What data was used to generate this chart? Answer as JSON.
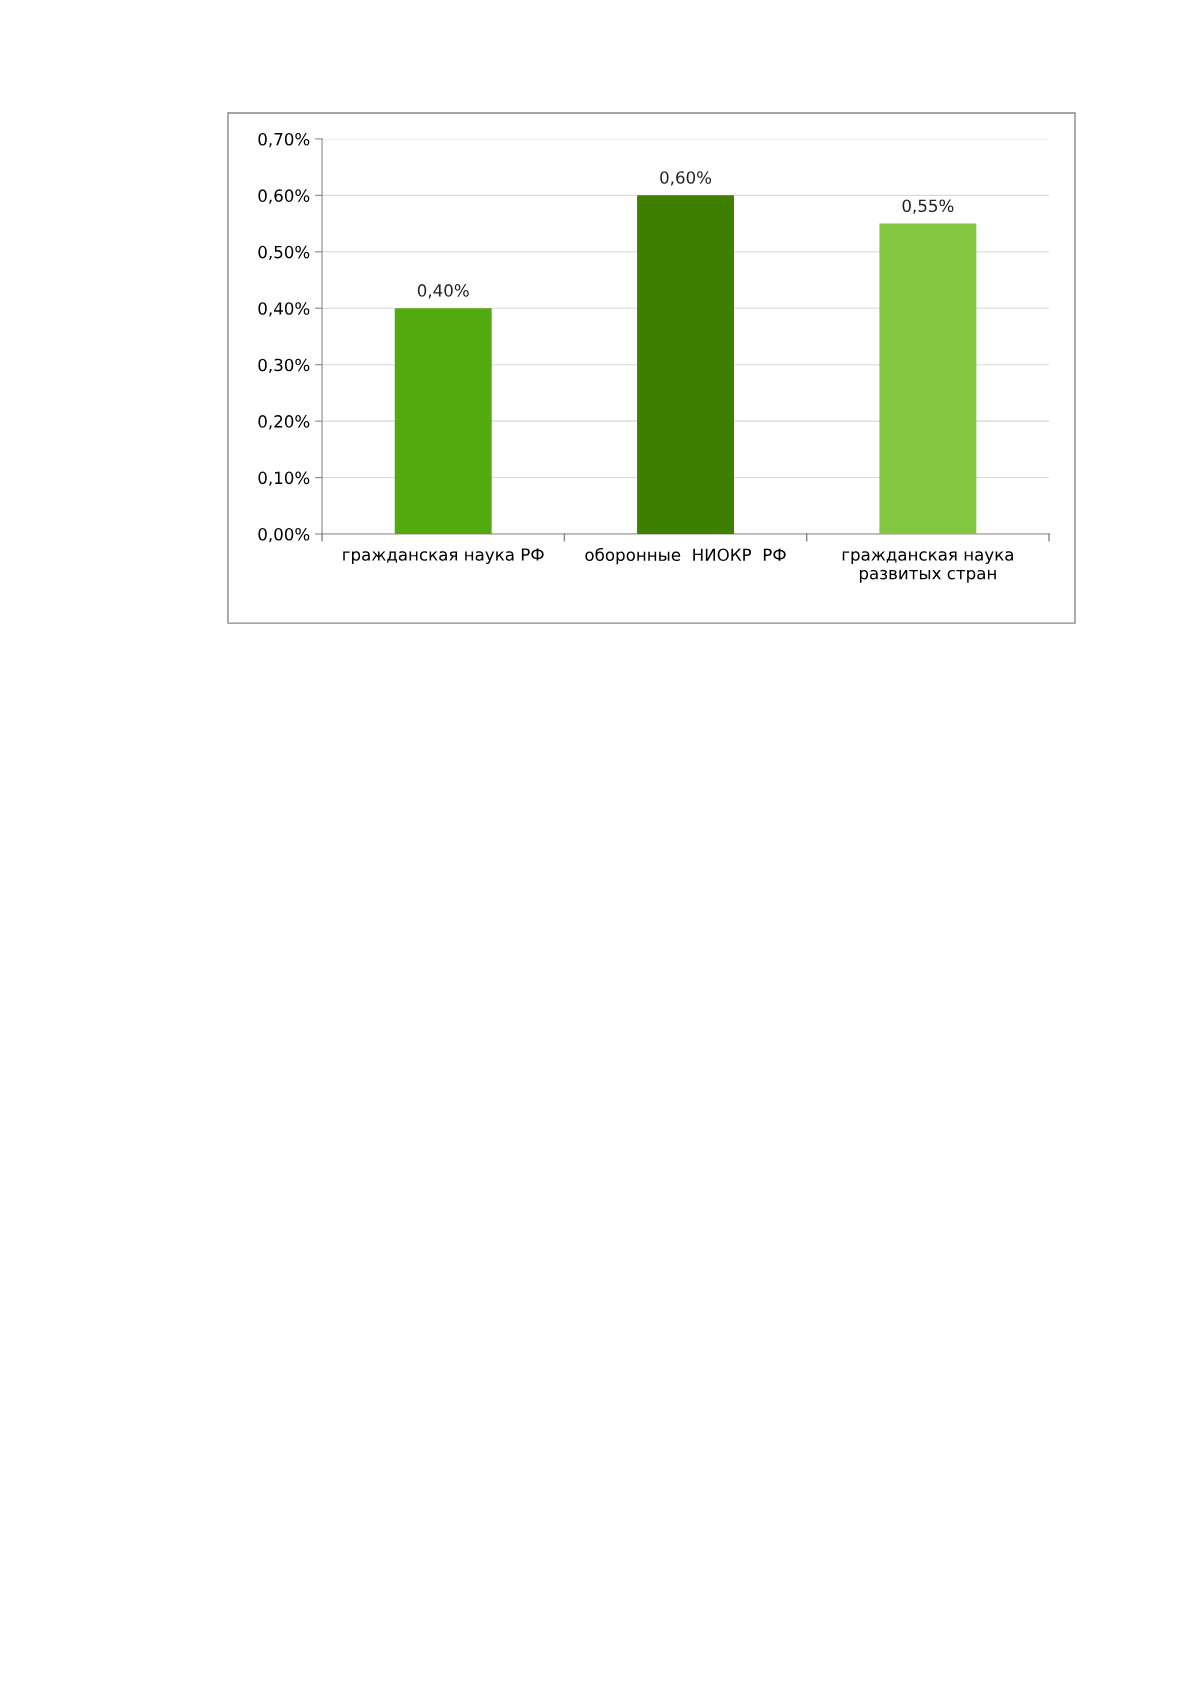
{
  "chart_data": {
    "type": "bar",
    "categories": [
      "гражданская наука РФ",
      "оборонные  НИОКР  РФ",
      "гражданская наука\nразвитых стран"
    ],
    "values": [
      0.4,
      0.6,
      0.55
    ],
    "colors": [
      "#52aa0e",
      "#3f7f00",
      "#84c63f"
    ],
    "value_labels": [
      "0,40%",
      "0,60%",
      "0,55%"
    ],
    "ylim": [
      0,
      0.7
    ],
    "yticks": [
      {
        "value": 0,
        "label": "0,00%"
      },
      {
        "value": 0.1,
        "label": "0,10%"
      },
      {
        "value": 0.2,
        "label": "0,20%"
      },
      {
        "value": 0.3,
        "label": "0,30%"
      },
      {
        "value": 0.4,
        "label": "0,40%"
      },
      {
        "value": 0.5,
        "label": "0,50%"
      },
      {
        "value": 0.6,
        "label": "0,60%"
      },
      {
        "value": 0.7,
        "label": "0,70%"
      }
    ],
    "grid": "y",
    "legend": false
  }
}
